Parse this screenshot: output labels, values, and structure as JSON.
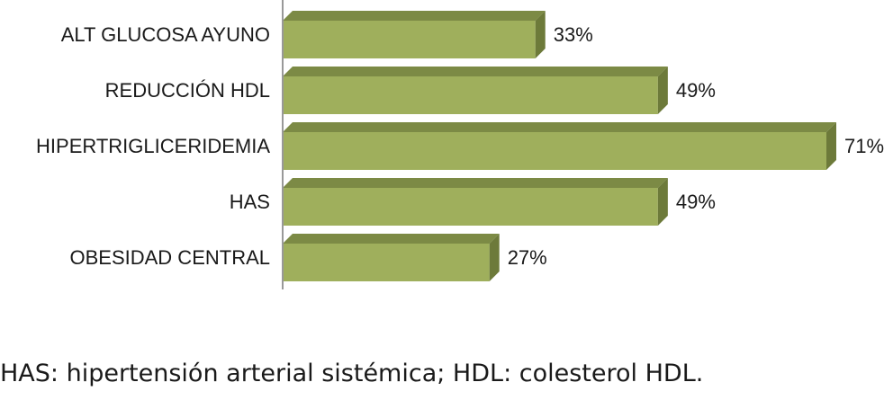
{
  "chart_data": {
    "type": "bar",
    "orientation": "horizontal",
    "categories": [
      "ALT GLUCOSA AYUNO",
      "REDUCCIÓN HDL",
      "HIPERTRIGLICERIDEMIA",
      "HAS",
      "OBESIDAD CENTRAL"
    ],
    "values": [
      33,
      49,
      71,
      49,
      27
    ],
    "value_labels": [
      "33%",
      "49%",
      "71%",
      "49%",
      "27%"
    ],
    "xlim": [
      0,
      71
    ],
    "grid": false,
    "legend": "none",
    "colors": {
      "bar_front": "#9faf5c",
      "bar_top": "#7c8a45",
      "bar_side": "#6d7a3a",
      "axis": "#999999"
    }
  },
  "footnote": "HAS: hipertensión arterial sistémica; HDL: colesterol HDL."
}
